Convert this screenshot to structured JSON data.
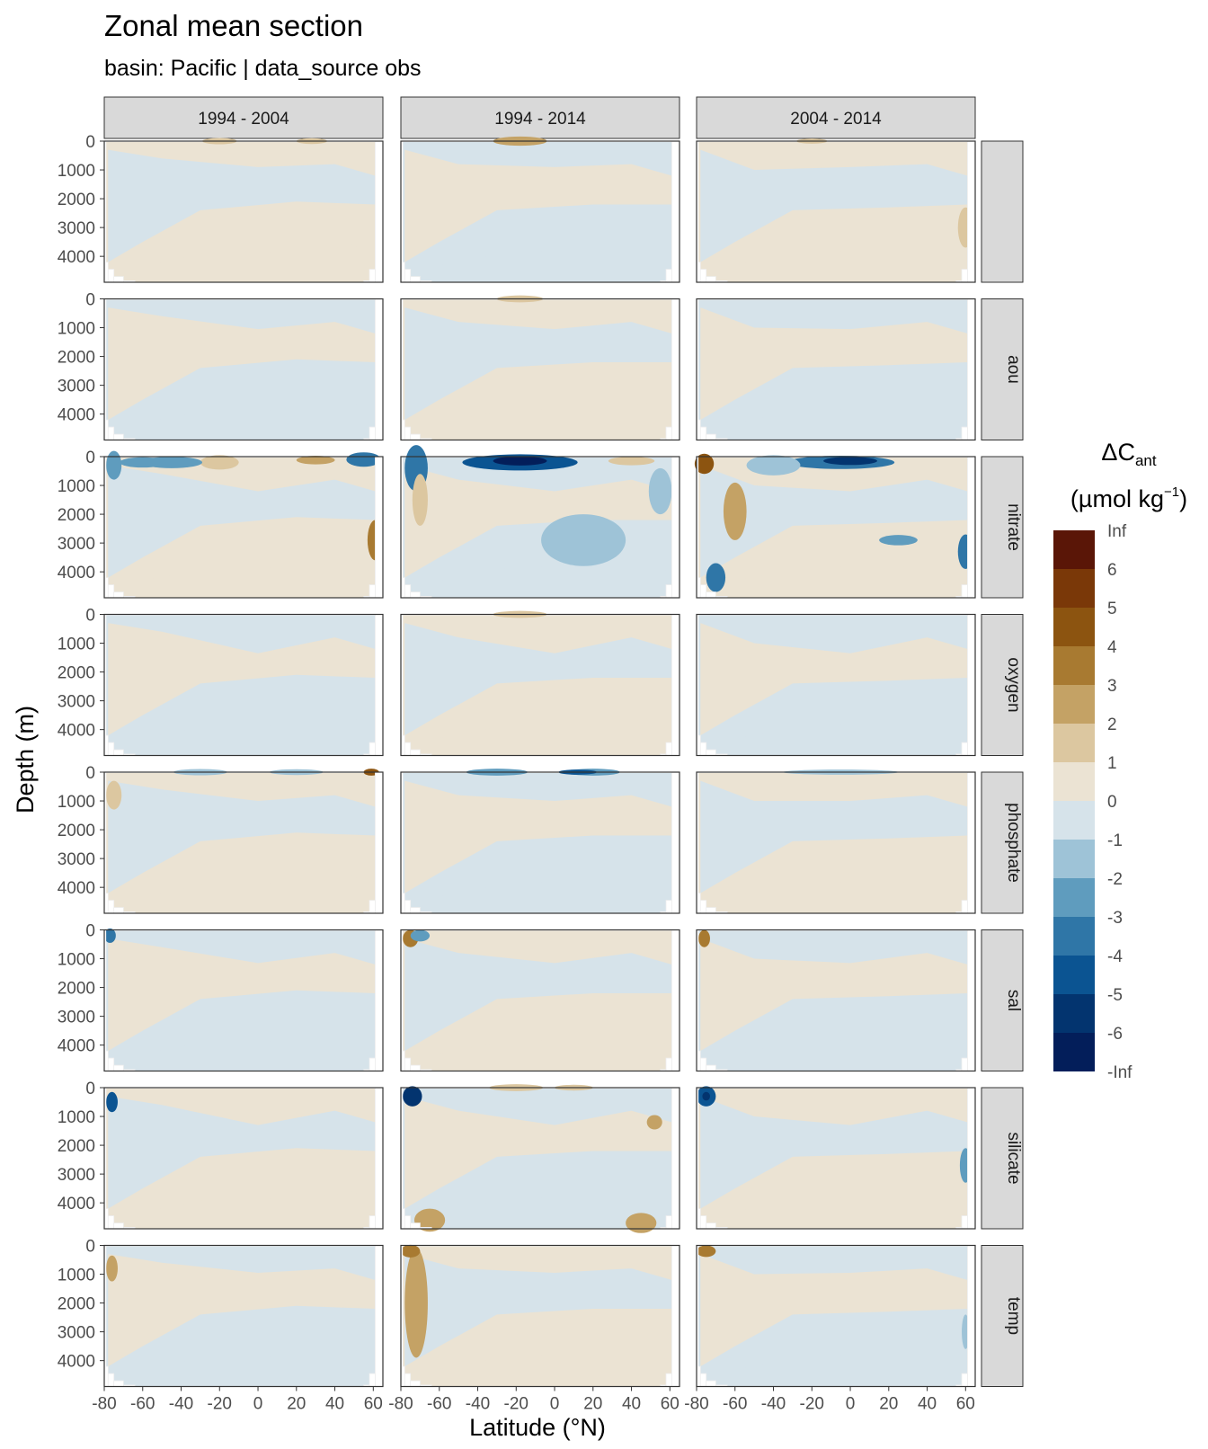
{
  "title": "Zonal mean section",
  "subtitle": "basin: Pacific | data_source obs",
  "chart_data": {
    "type": "heatmap",
    "title": "Zonal mean section",
    "subtitle": "basin: Pacific | data_source obs",
    "xlabel": "Latitude (°N)",
    "ylabel": "Depth (m)",
    "xlim": [
      -80,
      65
    ],
    "ylim": [
      4900,
      0
    ],
    "y_reversed": true,
    "x_ticks": [
      -80,
      -60,
      -40,
      -20,
      0,
      20,
      40,
      60
    ],
    "y_ticks": [
      0,
      1000,
      2000,
      3000,
      4000
    ],
    "x_tick_labels": [
      "-80",
      "-60",
      "-40",
      "-20",
      "0",
      "20",
      "40",
      "60"
    ],
    "y_tick_labels": [
      "0",
      "1000",
      "2000",
      "3000",
      "4000"
    ],
    "columns": [
      "1994 - 2004",
      "1994 - 2014",
      "2004 - 2014"
    ],
    "rows": [
      "",
      "aou",
      "nitrate",
      "oxygen",
      "phosphate",
      "sal",
      "silicate",
      "temp"
    ],
    "legend": {
      "title_main": "ΔC",
      "title_sub": "ant",
      "unit_prefix": "(µmol kg",
      "unit_sup": "−1",
      "unit_suffix": ")",
      "position": "right",
      "labels": [
        "Inf",
        "6",
        "5",
        "4",
        "3",
        "2",
        "1",
        "0",
        "-1",
        "-2",
        "-3",
        "-4",
        "-5",
        "-6",
        "-Inf"
      ],
      "colors": [
        "#5a1607",
        "#7a3808",
        "#8c5410",
        "#a87a31",
        "#c4a265",
        "#dcc7a0",
        "#ebe3d3",
        "#d6e3ea",
        "#9ec3d7",
        "#5f9cbe",
        "#2f76a7",
        "#0b5492",
        "#03346f",
        "#031e5a"
      ]
    },
    "colors": {
      "zero_pos": "#ebe3d3",
      "zero_neg": "#d6e3ea",
      "strip_fill": "#d9d9d9",
      "panel_border": "#333333",
      "missing_bathymetry": "#ffffff"
    }
  }
}
